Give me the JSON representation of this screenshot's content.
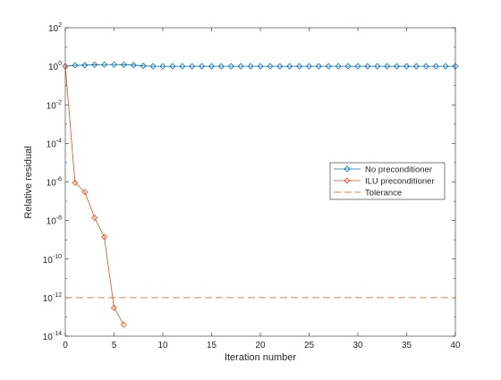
{
  "chart_data": {
    "type": "line",
    "title": "",
    "xlabel": "Iteration number",
    "ylabel": "Relative residual",
    "xlim": [
      0,
      40
    ],
    "ylim": [
      1e-14,
      100
    ],
    "yscale": "log",
    "xticks": [
      0,
      5,
      10,
      15,
      20,
      25,
      30,
      35,
      40
    ],
    "yticks": [
      {
        "base": "10",
        "exp": "2",
        "value": 100
      },
      {
        "base": "10",
        "exp": "0",
        "value": 1
      },
      {
        "base": "10",
        "exp": "-2",
        "value": 0.01
      },
      {
        "base": "10",
        "exp": "-4",
        "value": 0.0001
      },
      {
        "base": "10",
        "exp": "-6",
        "value": 1e-06
      },
      {
        "base": "10",
        "exp": "-8",
        "value": 1e-08
      },
      {
        "base": "10",
        "exp": "-10",
        "value": 1e-10
      },
      {
        "base": "10",
        "exp": "-12",
        "value": 1e-12
      },
      {
        "base": "10",
        "exp": "-14",
        "value": 1e-14
      }
    ],
    "grid": false,
    "legend_position": "right-middle",
    "series": [
      {
        "name": "No preconditioner",
        "color": "#0072BD",
        "marker": "diamond",
        "x": [
          0,
          1,
          2,
          3,
          4,
          5,
          6,
          7,
          8,
          9,
          10,
          11,
          12,
          13,
          14,
          15,
          16,
          17,
          18,
          19,
          20,
          21,
          22,
          23,
          24,
          25,
          26,
          27,
          28,
          29,
          30,
          31,
          32,
          33,
          34,
          35,
          36,
          37,
          38,
          39,
          40
        ],
        "values": [
          1.0,
          1.12,
          1.15,
          1.2,
          1.22,
          1.22,
          1.2,
          1.15,
          1.05,
          1.0,
          1.0,
          1.0,
          1.0,
          1.0,
          1.0,
          1.0,
          1.0,
          1.0,
          1.0,
          1.0,
          1.0,
          1.0,
          1.0,
          1.0,
          1.0,
          1.0,
          1.0,
          1.0,
          1.0,
          1.0,
          1.0,
          1.0,
          1.0,
          1.0,
          1.0,
          1.0,
          1.0,
          1.0,
          1.0,
          1.0,
          1.0
        ]
      },
      {
        "name": "ILU preconditioner",
        "color": "#D95319",
        "marker": "diamond",
        "x": [
          0,
          1,
          2,
          3,
          4,
          5,
          6
        ],
        "values": [
          1.0,
          9e-07,
          3e-07,
          1.4e-08,
          1.4e-09,
          3e-13,
          4e-14
        ]
      },
      {
        "name": "Tolerance",
        "color": "#D95319",
        "style": "dashed",
        "x": [
          0,
          40
        ],
        "values": [
          1e-12,
          1e-12
        ]
      }
    ]
  }
}
